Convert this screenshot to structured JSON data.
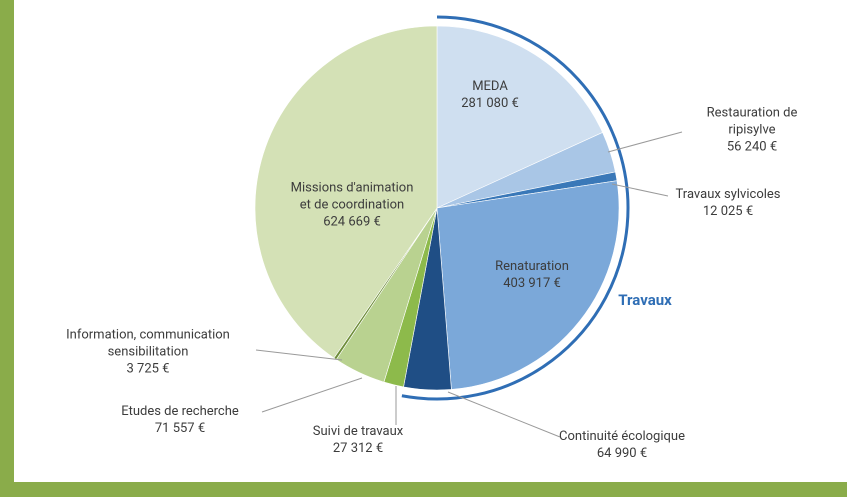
{
  "chart_data": {
    "type": "pie",
    "categories": [
      "MEDA",
      "Restauration de ripisylve",
      "Travaux sylvicoles",
      "Renaturation",
      "Continuité écologique",
      "Suivi de travaux",
      "Etudes de recherche",
      "Information, communication\nsensibilitation",
      "Missions d'animation\net de coordination"
    ],
    "values": [
      281080,
      56240,
      12025,
      403917,
      64990,
      27312,
      71557,
      3725,
      624669
    ],
    "value_labels": [
      "281 080 €",
      "56 240 €",
      "12 025 €",
      "403 917 €",
      "64 990 €",
      "27 312 €",
      "71 557 €",
      "3 725 €",
      "624 669 €"
    ],
    "colors": [
      "#cfdff0",
      "#a9c6e6",
      "#3a78b8",
      "#7ba8d9",
      "#1f4e85",
      "#8dba4b",
      "#b9d290",
      "#6f8e3a",
      "#d4e1b6"
    ],
    "annotation": "Travaux",
    "annotation_color": "#2f6eb5"
  }
}
